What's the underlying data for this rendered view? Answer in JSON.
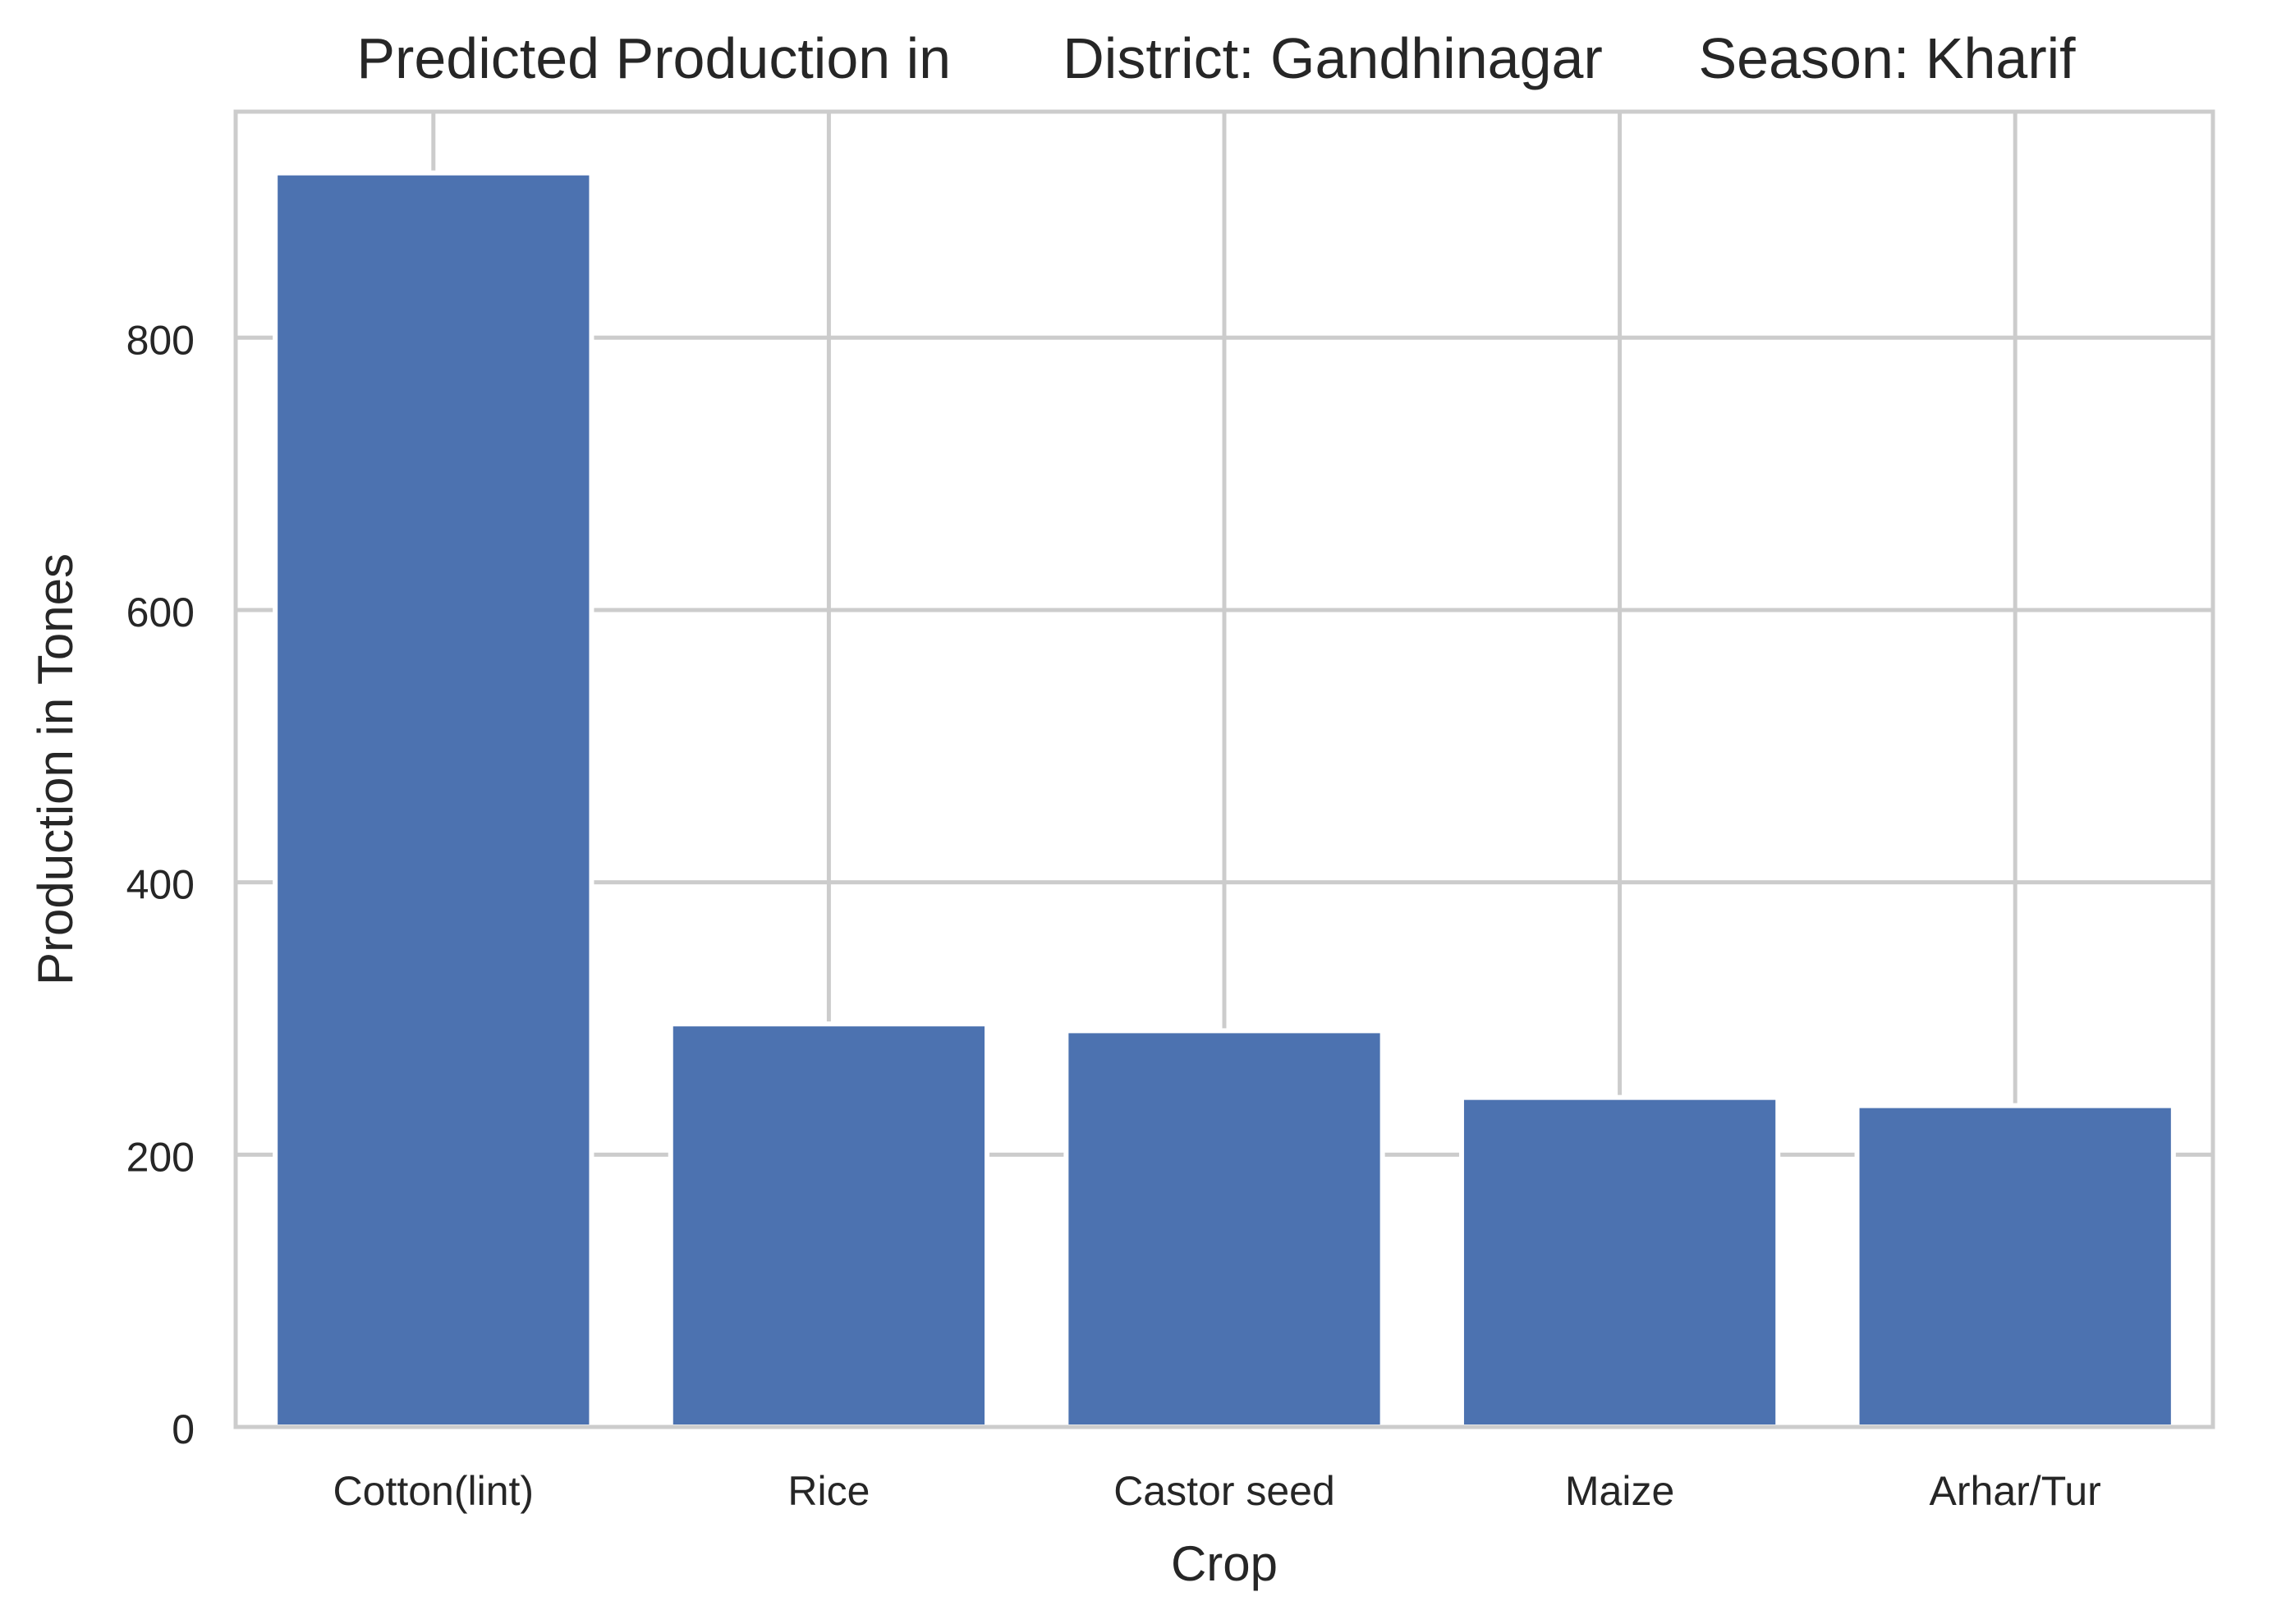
{
  "chart_data": {
    "type": "bar",
    "title": "Predicted Production in       District: Gandhinagar      Season: Kharif",
    "xlabel": "Crop",
    "ylabel": "Production in Tones",
    "categories": [
      "Cotton(lint)",
      "Rice",
      "Castor seed",
      "Maize",
      "Arhar/Tur"
    ],
    "values": [
      921,
      296,
      291,
      242,
      236
    ],
    "ylim": [
      0,
      966
    ],
    "yticks": [
      0,
      200,
      400,
      600,
      800
    ],
    "grid": true,
    "legend": "none",
    "colors": {
      "bar": "#4c72b0",
      "grid": "#cccccc",
      "spine": "#cccccc",
      "text": "#262626"
    }
  }
}
